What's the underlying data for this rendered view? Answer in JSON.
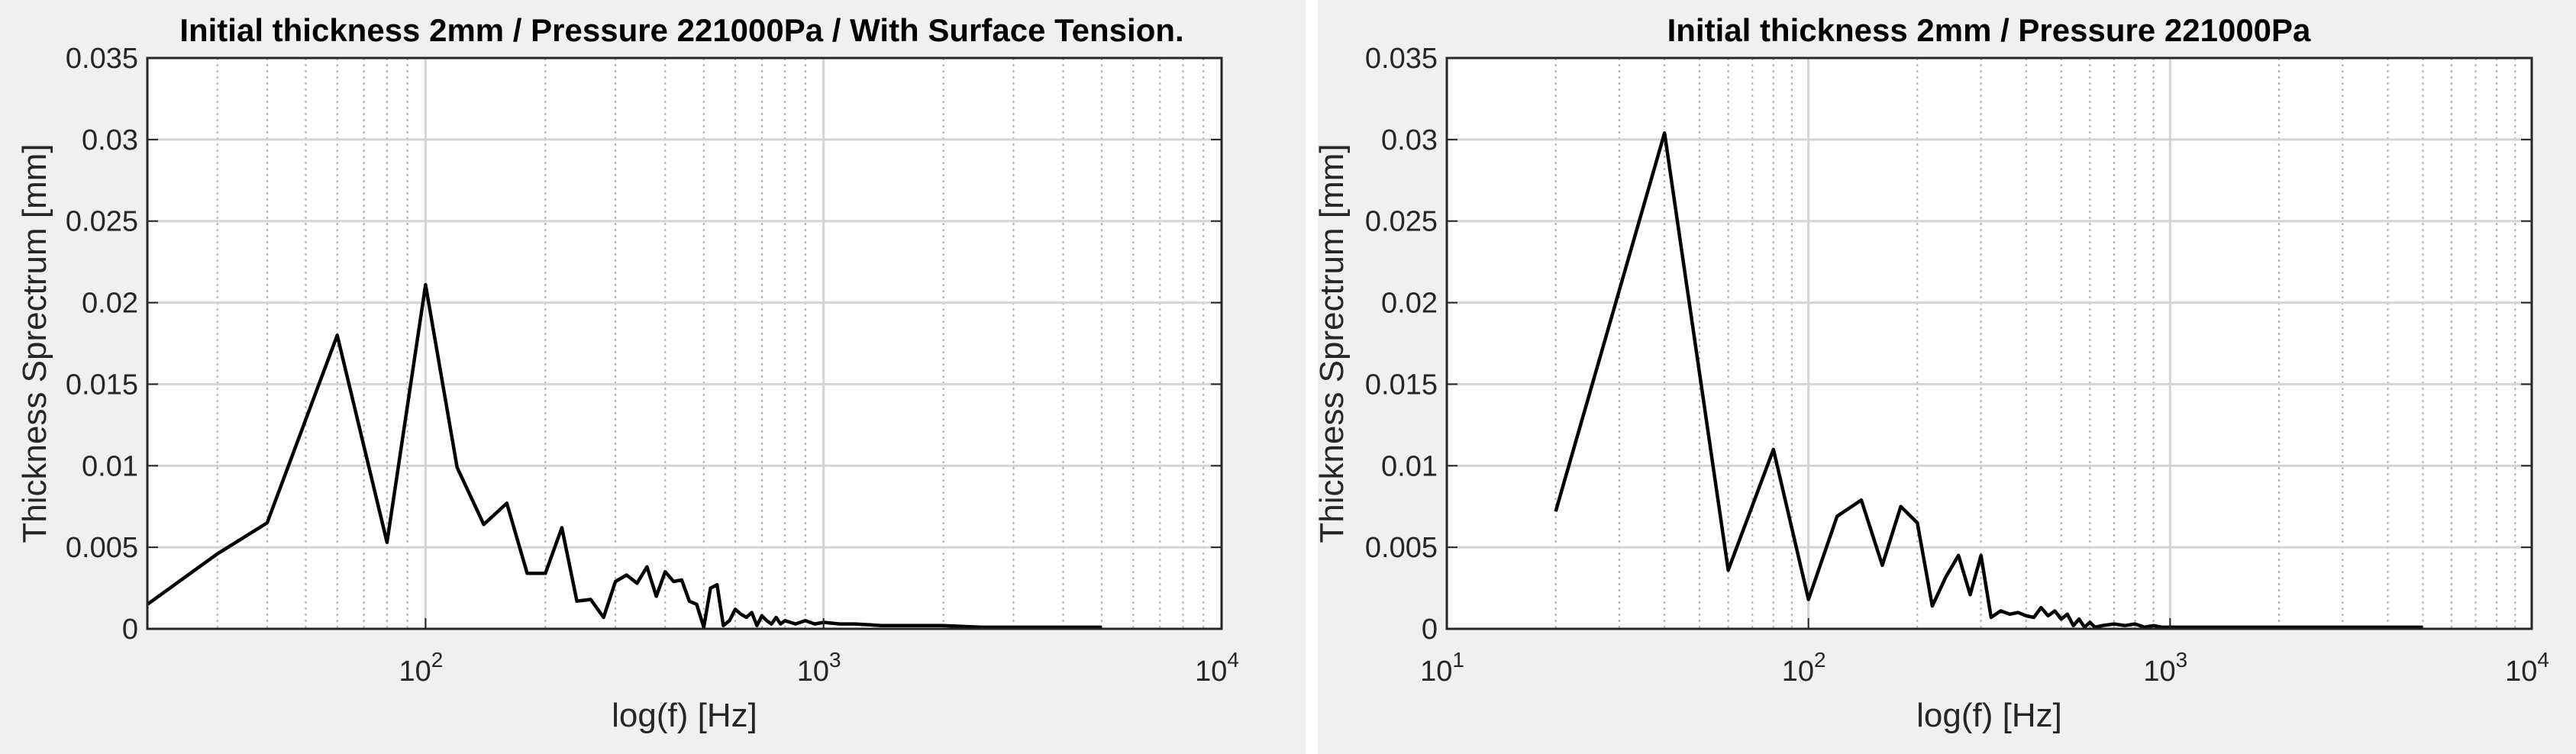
{
  "chart_data": [
    {
      "type": "line",
      "title": "Initial thickness 2mm / Pressure 221000Pa / With Surface Tension.",
      "xlabel": "log(f) [Hz]",
      "ylabel": "Thickness Sprectrum [mm]",
      "xscale": "log",
      "xlim": [
        20,
        10000
      ],
      "ylim": [
        0,
        0.035
      ],
      "yticks": [
        "0",
        "0.005",
        "0.01",
        "0.015",
        "0.02",
        "0.025",
        "0.03",
        "0.035"
      ],
      "xticks": [
        {
          "base": "10",
          "exp": "2",
          "value": 100
        },
        {
          "base": "10",
          "exp": "3",
          "value": 1000
        },
        {
          "base": "10",
          "exp": "4",
          "value": 10000
        }
      ],
      "grid": true,
      "line_color": "#000000",
      "x": [
        20,
        30,
        40,
        60,
        80,
        100,
        120,
        140,
        160,
        180,
        200,
        220,
        240,
        260,
        280,
        300,
        320,
        340,
        360,
        380,
        400,
        420,
        440,
        460,
        480,
        500,
        520,
        540,
        560,
        580,
        600,
        620,
        640,
        660,
        680,
        700,
        720,
        740,
        760,
        780,
        800,
        850,
        900,
        950,
        1000,
        1100,
        1200,
        1400,
        1600,
        1800,
        2000,
        2500,
        3000,
        3500,
        4000,
        5000
      ],
      "y": [
        0.0015,
        0.0046,
        0.0065,
        0.018,
        0.0053,
        0.0211,
        0.0099,
        0.0064,
        0.0077,
        0.0034,
        0.0034,
        0.0062,
        0.0017,
        0.0018,
        0.0007,
        0.0029,
        0.0033,
        0.0028,
        0.0038,
        0.002,
        0.0035,
        0.0029,
        0.003,
        0.0017,
        0.0015,
        0.0001,
        0.0025,
        0.0027,
        0.0002,
        0.0005,
        0.0012,
        0.0009,
        0.0007,
        0.001,
        0.0002,
        0.0008,
        0.0005,
        0.0003,
        0.0007,
        0.0003,
        0.0005,
        0.0003,
        0.0005,
        0.0003,
        0.0004,
        0.0003,
        0.0003,
        0.0002,
        0.0002,
        0.0002,
        0.0002,
        0.0001,
        0.0001,
        0.0001,
        0.0001,
        0.0001
      ]
    },
    {
      "type": "line",
      "title": "Initial thickness 2mm / Pressure 221000Pa",
      "xlabel": "log(f) [Hz]",
      "ylabel": "Thickness Sprectrum [mm]",
      "xscale": "log",
      "xlim": [
        10,
        10000
      ],
      "ylim": [
        0,
        0.035
      ],
      "yticks": [
        "0",
        "0.005",
        "0.01",
        "0.015",
        "0.02",
        "0.025",
        "0.03",
        "0.035"
      ],
      "xticks": [
        {
          "base": "10",
          "exp": "1",
          "value": 10
        },
        {
          "base": "10",
          "exp": "2",
          "value": 100
        },
        {
          "base": "10",
          "exp": "3",
          "value": 1000
        },
        {
          "base": "10",
          "exp": "4",
          "value": 10000
        }
      ],
      "grid": true,
      "line_color": "#000000",
      "x": [
        20,
        40,
        60,
        80,
        100,
        120,
        140,
        160,
        180,
        200,
        220,
        240,
        260,
        280,
        300,
        320,
        340,
        360,
        380,
        400,
        420,
        440,
        460,
        480,
        500,
        520,
        540,
        560,
        580,
        600,
        620,
        650,
        700,
        750,
        800,
        850,
        900,
        950,
        1000,
        1100,
        1200,
        1400,
        1600,
        2000,
        2500,
        3000,
        4000,
        5000
      ],
      "y": [
        0.0072,
        0.0304,
        0.0036,
        0.011,
        0.0018,
        0.0069,
        0.0079,
        0.0039,
        0.0075,
        0.0065,
        0.0014,
        0.0032,
        0.0045,
        0.0021,
        0.0045,
        0.0007,
        0.0011,
        0.0009,
        0.001,
        0.0008,
        0.0007,
        0.0013,
        0.0008,
        0.0011,
        0.0006,
        0.0009,
        0.0002,
        0.0006,
        0.0001,
        0.0004,
        0.0001,
        0.0002,
        0.0003,
        0.0002,
        0.0003,
        0.0001,
        0.0002,
        0.0001,
        0.0001,
        0.0001,
        0.0001,
        0.0001,
        0.0001,
        0.0001,
        0.0001,
        0.0001,
        0.0001,
        0.0001
      ]
    }
  ]
}
